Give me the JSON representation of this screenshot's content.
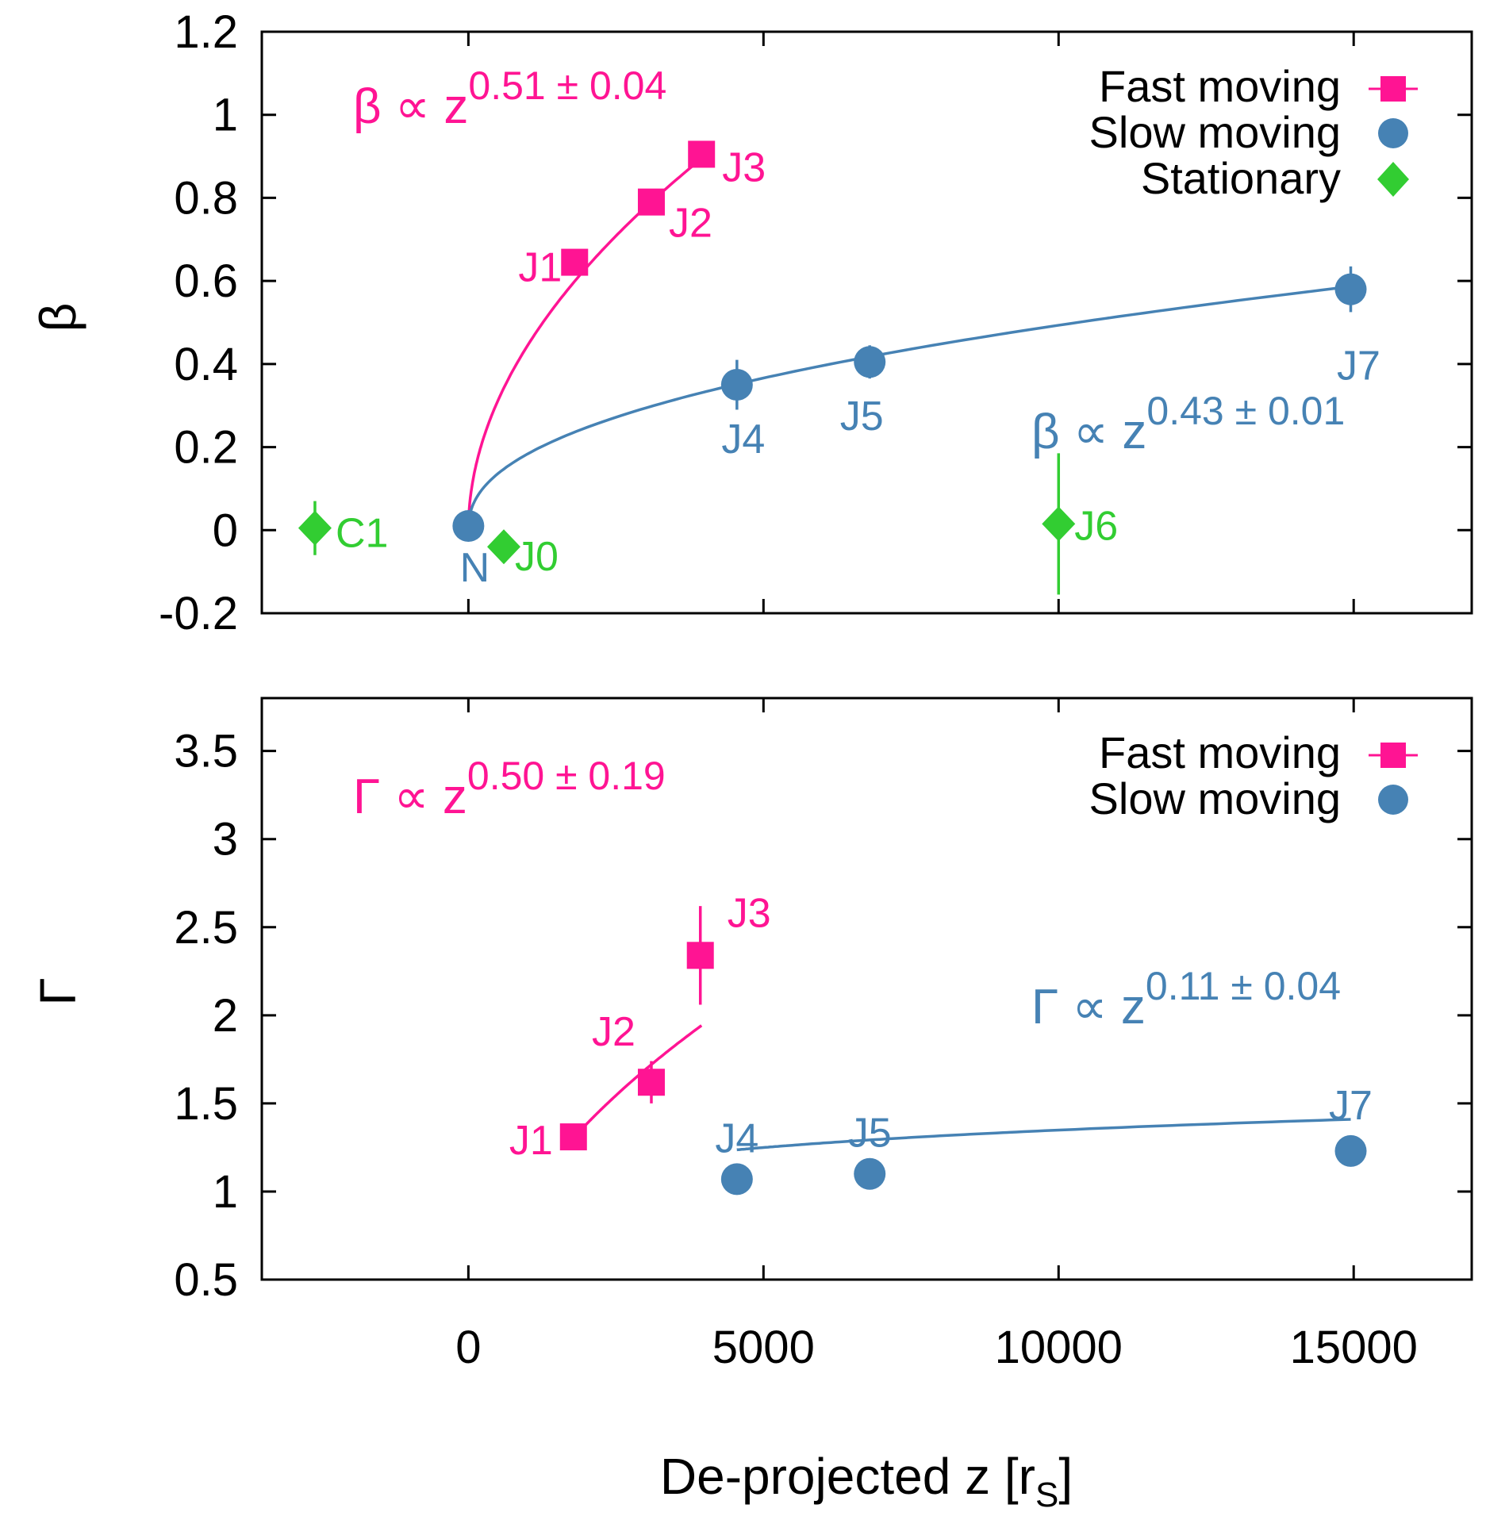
{
  "chart_data": [
    {
      "type": "scatter",
      "ylabel": "β",
      "xlabel": "",
      "xlim": [
        -3500,
        17000
      ],
      "ylim": [
        -0.2,
        1.2
      ],
      "xticks": [
        0,
        5000,
        10000,
        15000
      ],
      "yticks": [
        "-0.2",
        "0",
        "0.2",
        "0.4",
        "0.6",
        "0.8",
        "1",
        "1.2"
      ],
      "yticks_values": [
        -0.2,
        0,
        0.2,
        0.4,
        0.6,
        0.8,
        1.0,
        1.2
      ],
      "grid": false,
      "legend_position": "top-right",
      "legend": [
        {
          "name": "Fast moving",
          "color": "#ff1493",
          "marker": "square"
        },
        {
          "name": "Slow moving",
          "color": "#4682b4",
          "marker": "circle"
        },
        {
          "name": "Stationary",
          "color": "#32cd32",
          "marker": "diamond"
        }
      ],
      "series": [
        {
          "name": "Fast moving",
          "color": "#ff1493",
          "marker": "square",
          "points": [
            {
              "label": "J1",
              "x": 1800,
              "y": 0.645,
              "err": 0.02
            },
            {
              "label": "J2",
              "x": 3100,
              "y": 0.79,
              "err": 0.03
            },
            {
              "label": "J3",
              "x": 3950,
              "y": 0.905,
              "err": 0.02
            }
          ]
        },
        {
          "name": "Slow moving",
          "color": "#4682b4",
          "marker": "circle",
          "points": [
            {
              "label": "N",
              "x": 0,
              "y": 0.01,
              "err": 0.02
            },
            {
              "label": "J4",
              "x": 4550,
              "y": 0.35,
              "err": 0.06
            },
            {
              "label": "J5",
              "x": 6800,
              "y": 0.405,
              "err": 0.04
            },
            {
              "label": "J7",
              "x": 14950,
              "y": 0.58,
              "err": 0.055
            }
          ]
        },
        {
          "name": "Stationary",
          "color": "#32cd32",
          "marker": "diamond",
          "points": [
            {
              "label": "C1",
              "x": -2600,
              "y": 0.005,
              "err": 0.065
            },
            {
              "label": "J0",
              "x": 600,
              "y": -0.04,
              "err": 0.03
            },
            {
              "label": "J6",
              "x": 10000,
              "y": 0.015,
              "err": 0.17
            }
          ]
        }
      ],
      "fits": [
        {
          "color": "#ff1493",
          "coef": 0.0131,
          "exp": 0.51,
          "x_range": [
            0,
            3950
          ],
          "base": "β ∝ z",
          "exp_text": "0.51 ± 0.04"
        },
        {
          "color": "#4682b4",
          "coef": 0.0094,
          "exp": 0.43,
          "x_range": [
            0,
            14950
          ],
          "base": "β ∝ z",
          "exp_text": "0.43 ± 0.01"
        }
      ]
    },
    {
      "type": "scatter",
      "ylabel": "Γ",
      "xlabel": "De-projected z [r",
      "xlabel_sub": "S",
      "xlabel_end": "]",
      "xlim": [
        -3500,
        17000
      ],
      "ylim": [
        0.5,
        3.8
      ],
      "xticks": [
        0,
        5000,
        10000,
        15000
      ],
      "yticks": [
        "0.5",
        "1",
        "1.5",
        "2",
        "2.5",
        "3",
        "3.5"
      ],
      "yticks_values": [
        0.5,
        1.0,
        1.5,
        2.0,
        2.5,
        3.0,
        3.5
      ],
      "grid": false,
      "legend_position": "top-right",
      "legend": [
        {
          "name": "Fast moving",
          "color": "#ff1493",
          "marker": "square"
        },
        {
          "name": "Slow moving",
          "color": "#4682b4",
          "marker": "circle"
        }
      ],
      "series": [
        {
          "name": "Fast moving",
          "color": "#ff1493",
          "marker": "square",
          "points": [
            {
              "label": "J1",
              "x": 1780,
              "y": 1.31,
              "err": 0.03
            },
            {
              "label": "J2",
              "x": 3100,
              "y": 1.62,
              "err": 0.12
            },
            {
              "label": "J3",
              "x": 3930,
              "y": 2.34,
              "err": 0.28
            }
          ]
        },
        {
          "name": "Slow moving",
          "color": "#4682b4",
          "marker": "circle",
          "points": [
            {
              "label": "J4",
              "x": 4550,
              "y": 1.07,
              "err": 0.01
            },
            {
              "label": "J5",
              "x": 6800,
              "y": 1.1,
              "err": 0.01
            },
            {
              "label": "J7",
              "x": 14950,
              "y": 1.23,
              "err": 0.02
            }
          ]
        }
      ],
      "fits": [
        {
          "color": "#ff1493",
          "coef": 0.0309,
          "exp": 0.5,
          "x_range": [
            1780,
            3950
          ],
          "base": "Γ ∝ z",
          "exp_text": "0.50 ± 0.19"
        },
        {
          "color": "#4682b4",
          "coef": 0.4896,
          "exp": 0.11,
          "x_range": [
            4550,
            14950
          ],
          "base": "Γ ∝ z",
          "exp_text": "0.11 ± 0.04"
        }
      ]
    }
  ]
}
